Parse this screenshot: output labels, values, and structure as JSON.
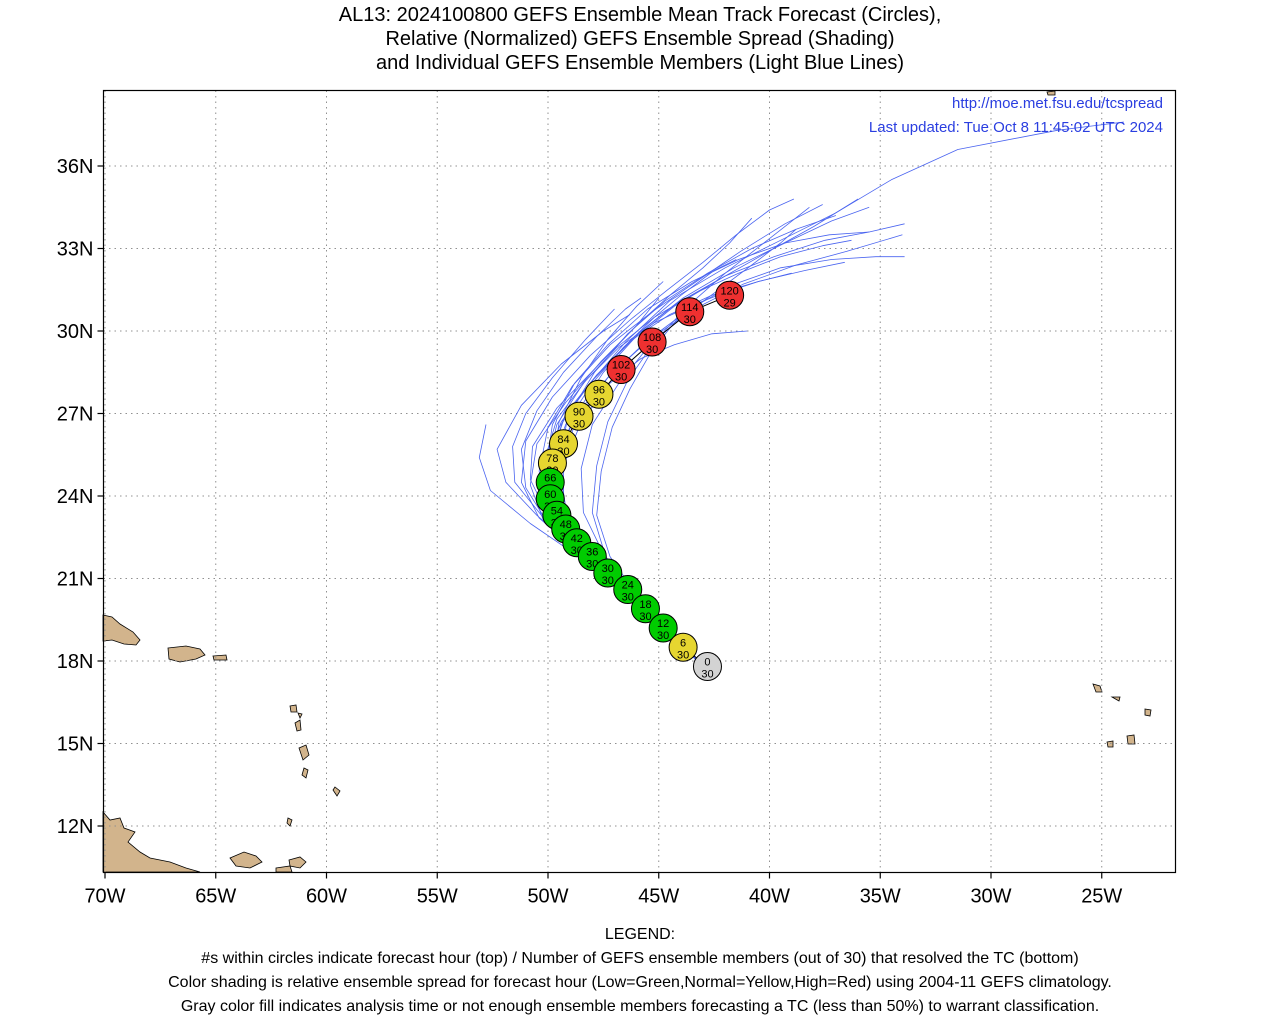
{
  "title_lines": [
    "AL13: 2024100800 GEFS Ensemble Mean Track Forecast (Circles),",
    "Relative (Normalized) GEFS Ensemble Spread (Shading)",
    "and Individual GEFS Ensemble Members (Light Blue Lines)"
  ],
  "source_url": "http://moe.met.fsu.edu/tcspread",
  "last_updated": "Last updated: Tue Oct 8 11:45:02 UTC 2024",
  "map": {
    "lon_range": [
      -70,
      -20.5
    ],
    "lat_range": [
      9.7,
      38.5
    ],
    "lat_ticks": [
      {
        "value": 12,
        "label": "12N"
      },
      {
        "value": 15,
        "label": "15N"
      },
      {
        "value": 18,
        "label": "18N"
      },
      {
        "value": 21,
        "label": "21N"
      },
      {
        "value": 24,
        "label": "24N"
      },
      {
        "value": 27,
        "label": "27N"
      },
      {
        "value": 30,
        "label": "30N"
      },
      {
        "value": 33,
        "label": "33N"
      },
      {
        "value": 36,
        "label": "36N"
      }
    ],
    "lon_ticks": [
      {
        "value": -70,
        "label": "70W"
      },
      {
        "value": -65,
        "label": "65W"
      },
      {
        "value": -60,
        "label": "60W"
      },
      {
        "value": -55,
        "label": "55W"
      },
      {
        "value": -50,
        "label": "50W"
      },
      {
        "value": -45,
        "label": "45W"
      },
      {
        "value": -40,
        "label": "40W"
      },
      {
        "value": -35,
        "label": "35W"
      },
      {
        "value": -30,
        "label": "30W"
      },
      {
        "value": -25,
        "label": "25W"
      }
    ],
    "grid": true
  },
  "colors": {
    "gray": "#d3d3d3",
    "green": "#00cc00",
    "yellow": "#e6d630",
    "red": "#ee3030",
    "member_line": "#4a64f0",
    "land": "#d2b48c",
    "credit_text": "#2a3ee0"
  },
  "mean_track": [
    {
      "hour": "0",
      "members": "30",
      "lon": -42.8,
      "lat": 17.8,
      "spread": "gray"
    },
    {
      "hour": "6",
      "members": "30",
      "lon": -43.9,
      "lat": 18.5,
      "spread": "yellow"
    },
    {
      "hour": "12",
      "members": "30",
      "lon": -44.8,
      "lat": 19.2,
      "spread": "green"
    },
    {
      "hour": "18",
      "members": "30",
      "lon": -45.6,
      "lat": 19.9,
      "spread": "green"
    },
    {
      "hour": "24",
      "members": "30",
      "lon": -46.4,
      "lat": 20.6,
      "spread": "green"
    },
    {
      "hour": "30",
      "members": "30",
      "lon": -47.3,
      "lat": 21.2,
      "spread": "green"
    },
    {
      "hour": "36",
      "members": "30",
      "lon": -48.0,
      "lat": 21.8,
      "spread": "green"
    },
    {
      "hour": "42",
      "members": "30",
      "lon": -48.7,
      "lat": 22.3,
      "spread": "green"
    },
    {
      "hour": "48",
      "members": "30",
      "lon": -49.2,
      "lat": 22.8,
      "spread": "green"
    },
    {
      "hour": "54",
      "members": "30",
      "lon": -49.6,
      "lat": 23.3,
      "spread": "green"
    },
    {
      "hour": "60",
      "members": "30",
      "lon": -49.9,
      "lat": 23.9,
      "spread": "green"
    },
    {
      "hour": "66",
      "members": "30",
      "lon": -49.9,
      "lat": 24.5,
      "spread": "green"
    },
    {
      "hour": "78",
      "members": "30",
      "lon": -49.8,
      "lat": 25.2,
      "spread": "yellow"
    },
    {
      "hour": "84",
      "members": "30",
      "lon": -49.3,
      "lat": 25.9,
      "spread": "yellow"
    },
    {
      "hour": "90",
      "members": "30",
      "lon": -48.6,
      "lat": 26.9,
      "spread": "yellow"
    },
    {
      "hour": "96",
      "members": "30",
      "lon": -47.7,
      "lat": 27.7,
      "spread": "yellow"
    },
    {
      "hour": "102",
      "members": "30",
      "lon": -46.7,
      "lat": 28.6,
      "spread": "red"
    },
    {
      "hour": "108",
      "members": "30",
      "lon": -45.3,
      "lat": 29.6,
      "spread": "red"
    },
    {
      "hour": "114",
      "members": "30",
      "lon": -43.6,
      "lat": 30.7,
      "spread": "red"
    },
    {
      "hour": "120",
      "members": "29",
      "lon": -41.8,
      "lat": 31.3,
      "spread": "red"
    }
  ],
  "members": [
    [
      [
        -43,
        17.8
      ],
      [
        -44.8,
        19.2
      ],
      [
        -46.8,
        20.8
      ],
      [
        -48.7,
        22.2
      ],
      [
        -50,
        23.6
      ],
      [
        -50.3,
        25
      ],
      [
        -49.5,
        26.5
      ],
      [
        -48.2,
        28
      ],
      [
        -46.5,
        29.6
      ],
      [
        -44.5,
        31.1
      ],
      [
        -42,
        32.3
      ],
      [
        -39.5,
        33.3
      ],
      [
        -37,
        34.3
      ],
      [
        -34.5,
        35.5
      ],
      [
        -31.5,
        36.6
      ],
      [
        -27,
        37.3
      ],
      [
        -24,
        37.6
      ]
    ],
    [
      [
        -43,
        17.8
      ],
      [
        -44.6,
        19.1
      ],
      [
        -46.4,
        20.6
      ],
      [
        -48.4,
        22.1
      ],
      [
        -50.3,
        23.3
      ],
      [
        -51.5,
        24.5
      ],
      [
        -51.6,
        25.8
      ],
      [
        -51,
        27
      ],
      [
        -49.8,
        28.3
      ],
      [
        -48.3,
        29.7
      ],
      [
        -47,
        30.8
      ]
    ],
    [
      [
        -43,
        17.8
      ],
      [
        -44.7,
        19.2
      ],
      [
        -46.7,
        20.7
      ],
      [
        -48.8,
        21.9
      ],
      [
        -50.8,
        23
      ],
      [
        -52.6,
        24.2
      ],
      [
        -53.1,
        25.4
      ],
      [
        -52.8,
        26.6
      ]
    ],
    [
      [
        -43,
        17.8
      ],
      [
        -44.5,
        19
      ],
      [
        -46.3,
        20.5
      ],
      [
        -48.2,
        22
      ],
      [
        -50,
        23.3
      ],
      [
        -50.8,
        24.6
      ],
      [
        -50.7,
        25.8
      ],
      [
        -49.6,
        27.2
      ],
      [
        -47.8,
        28.7
      ],
      [
        -46,
        30.2
      ],
      [
        -45,
        31.2
      ]
    ],
    [
      [
        -43,
        17.8
      ],
      [
        -44.6,
        19.1
      ],
      [
        -46.5,
        20.5
      ],
      [
        -48.5,
        21.9
      ],
      [
        -50.5,
        23.3
      ],
      [
        -51.9,
        24.5
      ],
      [
        -52.3,
        25.7
      ],
      [
        -51.2,
        27.3
      ],
      [
        -49.4,
        28.8
      ],
      [
        -47.5,
        30
      ],
      [
        -46.3,
        30.6
      ]
    ],
    [
      [
        -43,
        17.8
      ],
      [
        -44.6,
        19.1
      ],
      [
        -46.4,
        20.6
      ],
      [
        -48.3,
        22
      ],
      [
        -49.6,
        23.4
      ],
      [
        -49.9,
        25
      ],
      [
        -49.2,
        26.6
      ],
      [
        -48,
        28.1
      ],
      [
        -46.6,
        29.4
      ],
      [
        -45.2,
        30.5
      ],
      [
        -44,
        31.3
      ],
      [
        -42.5,
        32.2
      ],
      [
        -41.5,
        32.6
      ]
    ],
    [
      [
        -43,
        17.8
      ],
      [
        -44.7,
        19.1
      ],
      [
        -46.7,
        20.6
      ],
      [
        -48.6,
        22
      ],
      [
        -49.9,
        23.5
      ],
      [
        -50.2,
        25
      ],
      [
        -49.4,
        26.7
      ],
      [
        -48,
        28.2
      ],
      [
        -46.3,
        29.6
      ],
      [
        -44.3,
        30.9
      ],
      [
        -42,
        32
      ],
      [
        -39.8,
        33
      ],
      [
        -38,
        33.8
      ],
      [
        -36,
        34.8
      ]
    ],
    [
      [
        -43,
        17.8
      ],
      [
        -44.5,
        19
      ],
      [
        -46.2,
        20.5
      ],
      [
        -48,
        22
      ],
      [
        -49.5,
        23.6
      ],
      [
        -49.6,
        25.2
      ],
      [
        -48.8,
        26.9
      ],
      [
        -47.5,
        28.5
      ],
      [
        -45.8,
        30
      ],
      [
        -43.9,
        31.2
      ],
      [
        -41.6,
        32.3
      ],
      [
        -39.3,
        33.2
      ],
      [
        -37.2,
        34
      ],
      [
        -35.5,
        34.5
      ]
    ],
    [
      [
        -43,
        17.8
      ],
      [
        -44.7,
        19.2
      ],
      [
        -46.6,
        20.8
      ],
      [
        -48.4,
        22.2
      ],
      [
        -49.6,
        23.7
      ],
      [
        -49.9,
        25.3
      ],
      [
        -49.2,
        27
      ],
      [
        -47.8,
        28.4
      ],
      [
        -46.1,
        29.8
      ],
      [
        -44.2,
        31
      ],
      [
        -42,
        32
      ],
      [
        -39.8,
        32.7
      ],
      [
        -37.5,
        33.3
      ],
      [
        -35.5,
        33.6
      ],
      [
        -33.9,
        33.9
      ]
    ],
    [
      [
        -43,
        17.8
      ],
      [
        -44.6,
        19.1
      ],
      [
        -46.5,
        20.6
      ],
      [
        -48.3,
        22.1
      ],
      [
        -49.5,
        23.6
      ],
      [
        -49.7,
        25.2
      ],
      [
        -48.8,
        26.9
      ],
      [
        -47.2,
        28.4
      ],
      [
        -45.4,
        29.7
      ],
      [
        -43.4,
        30.8
      ],
      [
        -41.2,
        31.7
      ],
      [
        -38.8,
        32.4
      ],
      [
        -36.5,
        32.9
      ],
      [
        -34,
        33.5
      ]
    ],
    [
      [
        -43,
        17.8
      ],
      [
        -44.5,
        19.1
      ],
      [
        -46.3,
        20.5
      ],
      [
        -48.2,
        21.9
      ],
      [
        -49.4,
        23.4
      ],
      [
        -49.5,
        25
      ],
      [
        -48.7,
        26.8
      ],
      [
        -47.3,
        28.3
      ],
      [
        -45.6,
        29.6
      ],
      [
        -43.6,
        30.8
      ],
      [
        -41.6,
        31.7
      ],
      [
        -39.5,
        32.3
      ],
      [
        -37.2,
        32.6
      ],
      [
        -35.2,
        32.7
      ],
      [
        -33.9,
        32.7
      ]
    ],
    [
      [
        -43,
        17.8
      ],
      [
        -44.6,
        19.1
      ],
      [
        -46.5,
        20.6
      ],
      [
        -48.4,
        22
      ],
      [
        -49.7,
        23.5
      ],
      [
        -50,
        25.1
      ],
      [
        -49.3,
        26.8
      ],
      [
        -47.8,
        28.4
      ],
      [
        -46.2,
        29.7
      ],
      [
        -44.5,
        30.6
      ],
      [
        -42.6,
        31.3
      ],
      [
        -40.5,
        31.8
      ],
      [
        -38.4,
        32.2
      ],
      [
        -36.6,
        32.5
      ]
    ],
    [
      [
        -43,
        17.8
      ],
      [
        -44.7,
        19.2
      ],
      [
        -46.6,
        20.7
      ],
      [
        -48.5,
        22.1
      ],
      [
        -49.8,
        23.6
      ],
      [
        -50.2,
        25.2
      ],
      [
        -49.6,
        26.8
      ],
      [
        -48.3,
        28.2
      ],
      [
        -46.8,
        29.4
      ],
      [
        -45.2,
        30.3
      ],
      [
        -43.6,
        30.9
      ],
      [
        -42,
        31.4
      ],
      [
        -40.5,
        31.8
      ],
      [
        -39,
        32.1
      ]
    ],
    [
      [
        -43,
        17.8
      ],
      [
        -44.6,
        19.1
      ],
      [
        -46.4,
        20.6
      ],
      [
        -48.2,
        22
      ],
      [
        -49.3,
        23.5
      ],
      [
        -49.3,
        25.1
      ],
      [
        -48.5,
        26.7
      ],
      [
        -47.2,
        28.1
      ],
      [
        -45.8,
        29
      ],
      [
        -44.3,
        29.5
      ],
      [
        -42.6,
        29.9
      ],
      [
        -41,
        30
      ]
    ],
    [
      [
        -43,
        17.8
      ],
      [
        -44.5,
        19
      ],
      [
        -46.1,
        20.4
      ],
      [
        -47.4,
        21.8
      ],
      [
        -48,
        23.4
      ],
      [
        -47.8,
        25.1
      ],
      [
        -47.3,
        26.7
      ],
      [
        -46.4,
        28.2
      ],
      [
        -45.2,
        29.6
      ],
      [
        -43.7,
        30.9
      ],
      [
        -42,
        32.1
      ],
      [
        -40.1,
        33.3
      ],
      [
        -38.2,
        34.5
      ]
    ],
    [
      [
        -43,
        17.8
      ],
      [
        -44.4,
        19
      ],
      [
        -45.9,
        20.3
      ],
      [
        -47.2,
        21.8
      ],
      [
        -47.8,
        23.3
      ],
      [
        -47.6,
        24.9
      ],
      [
        -47.1,
        26.5
      ],
      [
        -46.3,
        27.9
      ],
      [
        -45.3,
        29.3
      ],
      [
        -44.1,
        30.5
      ]
    ],
    [
      [
        -43,
        17.8
      ],
      [
        -44.5,
        19
      ],
      [
        -46,
        20.4
      ],
      [
        -47.5,
        21.9
      ],
      [
        -48.4,
        23.4
      ],
      [
        -48.5,
        25
      ],
      [
        -48,
        26.6
      ],
      [
        -46.8,
        28.1
      ],
      [
        -45.4,
        29.5
      ],
      [
        -43.8,
        30.6
      ],
      [
        -42.3,
        31.5
      ],
      [
        -40.8,
        32.4
      ],
      [
        -39.5,
        33.2
      ],
      [
        -38.8,
        33.7
      ]
    ],
    [
      [
        -43,
        17.8
      ],
      [
        -44.6,
        19.1
      ],
      [
        -46.6,
        20.6
      ],
      [
        -48.6,
        21.9
      ],
      [
        -50.2,
        23.1
      ],
      [
        -50.8,
        24.4
      ],
      [
        -50.5,
        25.9
      ],
      [
        -49.2,
        27.4
      ],
      [
        -47.6,
        28.9
      ],
      [
        -46,
        30.2
      ],
      [
        -44.5,
        31.3
      ],
      [
        -43,
        32.3
      ],
      [
        -41.8,
        33.2
      ],
      [
        -40.8,
        34.1
      ]
    ],
    [
      [
        -43,
        17.8
      ],
      [
        -44.7,
        19.2
      ],
      [
        -46.7,
        20.7
      ],
      [
        -48.7,
        22
      ],
      [
        -50.4,
        23.2
      ],
      [
        -51.2,
        24.5
      ],
      [
        -51,
        26
      ],
      [
        -49.8,
        27.6
      ],
      [
        -48.1,
        29.1
      ],
      [
        -46.3,
        30.4
      ],
      [
        -44.6,
        31.5
      ],
      [
        -43,
        32.5
      ],
      [
        -41.5,
        33.5
      ],
      [
        -40,
        34.4
      ],
      [
        -38.9,
        34.8
      ]
    ],
    [
      [
        -43,
        17.8
      ],
      [
        -44.6,
        19.1
      ],
      [
        -46.4,
        20.6
      ],
      [
        -48.3,
        22
      ],
      [
        -49.8,
        23.4
      ],
      [
        -50.4,
        24.9
      ],
      [
        -50,
        26.5
      ],
      [
        -48.9,
        28
      ],
      [
        -47.2,
        29.5
      ],
      [
        -45.3,
        30.7
      ],
      [
        -43.3,
        31.8
      ],
      [
        -41.3,
        32.9
      ],
      [
        -39.3,
        33.9
      ],
      [
        -37.6,
        34.6
      ]
    ],
    [
      [
        -43,
        17.8
      ],
      [
        -44.5,
        19
      ],
      [
        -46.2,
        20.5
      ],
      [
        -48,
        21.9
      ],
      [
        -49.5,
        23.3
      ],
      [
        -50.1,
        24.9
      ],
      [
        -49.8,
        26.6
      ],
      [
        -48.8,
        28.1
      ],
      [
        -47.3,
        29.5
      ],
      [
        -45.5,
        30.8
      ],
      [
        -43.5,
        31.8
      ],
      [
        -41.4,
        32.6
      ],
      [
        -39.3,
        33.2
      ],
      [
        -37.3,
        33.5
      ],
      [
        -35.5,
        33.6
      ]
    ],
    [
      [
        -43,
        17.8
      ],
      [
        -44.6,
        19.1
      ],
      [
        -46.5,
        20.6
      ],
      [
        -48.4,
        22
      ],
      [
        -49.7,
        23.4
      ],
      [
        -50.1,
        25
      ],
      [
        -49.6,
        26.6
      ],
      [
        -48.4,
        28.1
      ],
      [
        -46.9,
        29.4
      ],
      [
        -45.2,
        30.5
      ],
      [
        -43.3,
        31.4
      ],
      [
        -41.4,
        32.1
      ],
      [
        -39.5,
        32.7
      ],
      [
        -37.6,
        33.1
      ],
      [
        -36.3,
        33.3
      ]
    ],
    [
      [
        -43,
        17.8
      ],
      [
        -44.6,
        19.1
      ],
      [
        -46.4,
        20.6
      ],
      [
        -48.1,
        22.1
      ],
      [
        -49.2,
        23.6
      ],
      [
        -49.5,
        25.2
      ],
      [
        -49.1,
        26.9
      ],
      [
        -47.9,
        28.5
      ],
      [
        -46.4,
        29.9
      ],
      [
        -44.7,
        31.1
      ],
      [
        -42.8,
        32.1
      ],
      [
        -40.8,
        33
      ],
      [
        -38.8,
        33.7
      ],
      [
        -37,
        34.2
      ]
    ],
    [
      [
        -43,
        17.8
      ],
      [
        -44.5,
        19
      ],
      [
        -46.3,
        20.5
      ],
      [
        -48.1,
        21.9
      ],
      [
        -49.4,
        23.4
      ],
      [
        -49.8,
        25
      ],
      [
        -49.5,
        26.7
      ],
      [
        -48.5,
        28.3
      ],
      [
        -47.3,
        29.7
      ],
      [
        -46,
        30.9
      ],
      [
        -44.8,
        31.8
      ]
    ],
    [
      [
        -43,
        17.8
      ],
      [
        -44.6,
        19.1
      ],
      [
        -46.5,
        20.5
      ],
      [
        -48.4,
        21.8
      ],
      [
        -50,
        23
      ],
      [
        -51,
        24.3
      ],
      [
        -51.2,
        25.7
      ],
      [
        -50.5,
        27.1
      ],
      [
        -49.3,
        28.5
      ],
      [
        -47.8,
        29.8
      ],
      [
        -46.5,
        30.8
      ],
      [
        -45.8,
        31.2
      ]
    ]
  ]
}
